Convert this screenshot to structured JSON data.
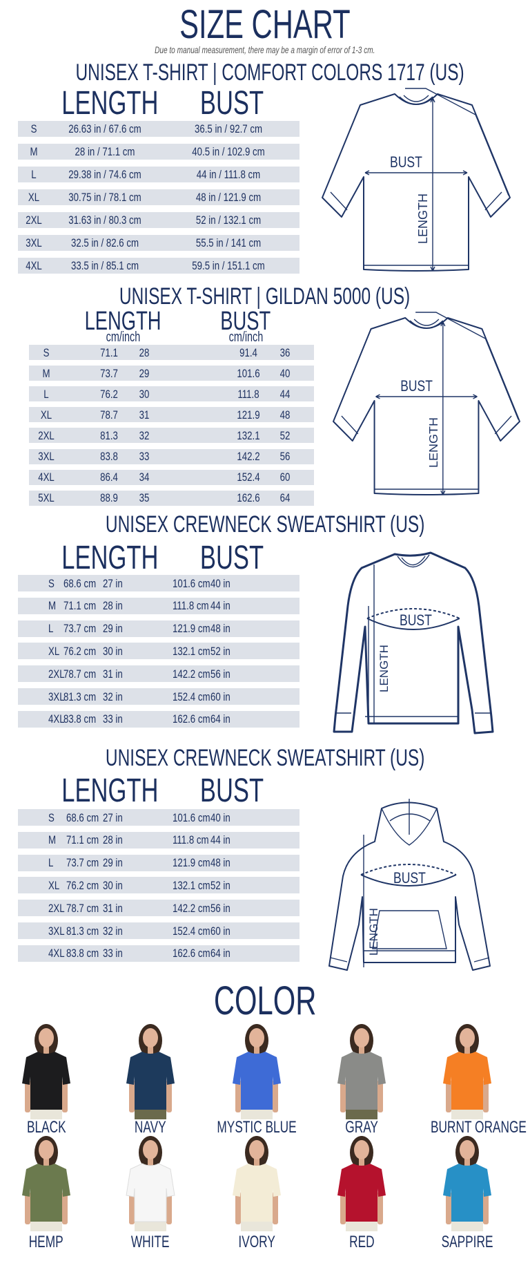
{
  "header": {
    "title": "SIZE CHART",
    "subtitle": "Due to manual measurement, there may be a margin of error of 1-3 cm."
  },
  "labels": {
    "length": "LENGTH",
    "bust": "BUST",
    "unit": "cm/inch"
  },
  "sections": [
    {
      "title": "UNISEX T-SHIRT | COMFORT COLORS 1717 (US)",
      "type": "combined",
      "rows": [
        [
          "S",
          "26.63 in / 67.6 cm",
          "36.5 in / 92.7 cm"
        ],
        [
          "M",
          "28 in / 71.1 cm",
          "40.5 in / 102.9 cm"
        ],
        [
          "L",
          "29.38 in / 74.6 cm",
          "44 in / 111.8 cm"
        ],
        [
          "XL",
          "30.75 in / 78.1 cm",
          "48 in / 121.9 cm"
        ],
        [
          "2XL",
          "31.63 in / 80.3 cm",
          "52 in / 132.1 cm"
        ],
        [
          "3XL",
          "32.5 in / 82.6 cm",
          "55.5 in / 141 cm"
        ],
        [
          "4XL",
          "33.5 in / 85.1 cm",
          "59.5 in / 151.1 cm"
        ]
      ]
    },
    {
      "title": "UNISEX T-SHIRT | GILDAN 5000 (US)",
      "type": "split",
      "rows": [
        [
          "S",
          "71.1",
          "28",
          "91.4",
          "36"
        ],
        [
          "M",
          "73.7",
          "29",
          "101.6",
          "40"
        ],
        [
          "L",
          "76.2",
          "30",
          "111.8",
          "44"
        ],
        [
          "XL",
          "78.7",
          "31",
          "121.9",
          "48"
        ],
        [
          "2XL",
          "81.3",
          "32",
          "132.1",
          "52"
        ],
        [
          "3XL",
          "83.8",
          "33",
          "142.2",
          "56"
        ],
        [
          "4XL",
          "86.4",
          "34",
          "152.4",
          "60"
        ],
        [
          "5XL",
          "88.9",
          "35",
          "162.6",
          "64"
        ]
      ]
    },
    {
      "title": "UNISEX CREWNECK SWEATSHIRT (US)",
      "type": "units",
      "rows": [
        [
          "S",
          "68.6 cm",
          "27 in",
          "101.6 cm",
          "40 in"
        ],
        [
          "M",
          "71.1 cm",
          "28 in",
          "111.8 cm",
          "44 in"
        ],
        [
          "L",
          "73.7 cm",
          "29 in",
          "121.9 cm",
          "48 in"
        ],
        [
          "XL",
          "76.2 cm",
          "30 in",
          "132.1 cm",
          "52 in"
        ],
        [
          "2XL",
          "78.7 cm",
          "31 in",
          "142.2 cm",
          "56 in"
        ],
        [
          "3XL",
          "81.3 cm",
          "32 in",
          "152.4 cm",
          "60 in"
        ],
        [
          "4XL",
          "83.8 cm",
          "33 in",
          "162.6 cm",
          "64 in"
        ]
      ]
    },
    {
      "title": "UNISEX CREWNECK SWEATSHIRT (US)",
      "type": "units",
      "rows": [
        [
          "S",
          "68.6 cm",
          "27 in",
          "101.6 cm",
          "40 in"
        ],
        [
          "M",
          "71.1 cm",
          "28 in",
          "111.8 cm",
          "44 in"
        ],
        [
          "L",
          "73.7 cm",
          "29 in",
          "121.9 cm",
          "48 in"
        ],
        [
          "XL",
          "76.2 cm",
          "30 in",
          "132.1 cm",
          "52 in"
        ],
        [
          "2XL",
          "78.7 cm",
          "31 in",
          "142.2 cm",
          "56 in"
        ],
        [
          "3XL",
          "81.3 cm",
          "32 in",
          "152.4 cm",
          "60 in"
        ],
        [
          "4XL",
          "83.8 cm",
          "33 in",
          "162.6 cm",
          "64 in"
        ]
      ]
    }
  ],
  "colors": {
    "title": "COLOR",
    "items": [
      {
        "name": "BLACK",
        "hex": "#1c1c1e"
      },
      {
        "name": "NAVY",
        "hex": "#1d3a5c"
      },
      {
        "name": "MYSTIC BLUE",
        "hex": "#3e6bd6"
      },
      {
        "name": "GRAY",
        "hex": "#8a8b88"
      },
      {
        "name": "BURNT ORANGE",
        "hex": "#f57f24"
      },
      {
        "name": "HEMP",
        "hex": "#6b7a4e"
      },
      {
        "name": "WHITE",
        "hex": "#f6f6f6"
      },
      {
        "name": "IVORY",
        "hex": "#f3ecd6"
      },
      {
        "name": "RED",
        "hex": "#b5122d"
      },
      {
        "name": "SAPPIRE",
        "hex": "#2790c6"
      }
    ]
  },
  "theme": {
    "text": "#1b2f5e",
    "row_bg": "#dde1e8"
  }
}
